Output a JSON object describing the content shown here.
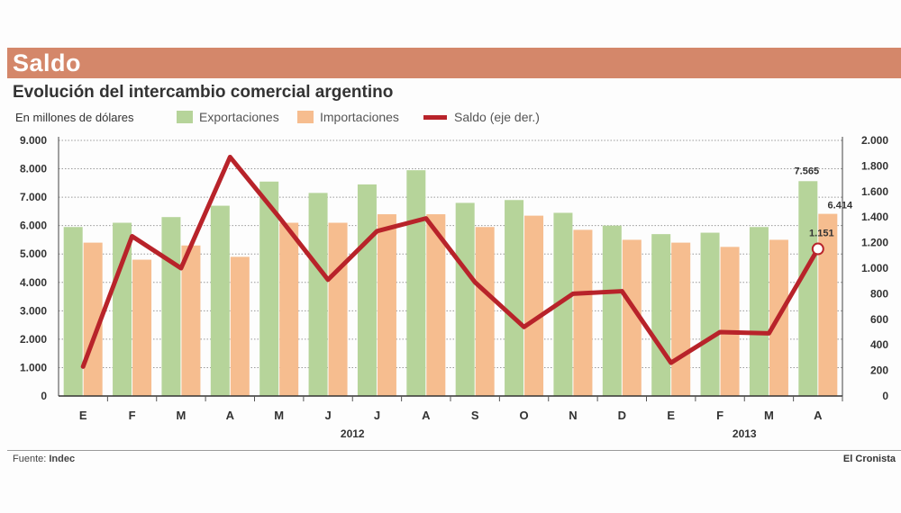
{
  "header": {
    "title": "Saldo"
  },
  "chart_title": "Evolución del intercambio comercial argentino",
  "unit_label": "En millones de dólares",
  "legend": [
    {
      "label": "Exportaciones",
      "color": "#b6d49a",
      "kind": "bar"
    },
    {
      "label": "Importaciones",
      "color": "#f6bd8f",
      "kind": "bar"
    },
    {
      "label": "Saldo (eje der.)",
      "color": "#b8232a",
      "kind": "line"
    }
  ],
  "footer": {
    "source_prefix": "Fuente:",
    "source_name": "Indec",
    "publisher": "El Cronista"
  },
  "chart_data": {
    "type": "bar",
    "categories": [
      "E",
      "F",
      "M",
      "A",
      "M",
      "J",
      "J",
      "A",
      "S",
      "O",
      "N",
      "D",
      "E",
      "F",
      "M",
      "A"
    ],
    "year_labels": [
      {
        "label": "2012",
        "from": 0,
        "to": 11
      },
      {
        "label": "2013",
        "from": 12,
        "to": 15
      }
    ],
    "series": [
      {
        "name": "Exportaciones",
        "color": "#b6d49a",
        "axis": "left",
        "values": [
          5950,
          6100,
          6300,
          6700,
          7550,
          7150,
          7450,
          7950,
          6800,
          6900,
          6450,
          6000,
          5700,
          5750,
          5950,
          7565
        ]
      },
      {
        "name": "Importaciones",
        "color": "#f6bd8f",
        "axis": "left",
        "values": [
          5400,
          4800,
          5300,
          4900,
          6100,
          6100,
          6400,
          6400,
          5950,
          6350,
          5850,
          5500,
          5400,
          5250,
          5500,
          6414
        ]
      },
      {
        "name": "Saldo (eje der.)",
        "color": "#b8232a",
        "axis": "right",
        "type": "line",
        "values": [
          230,
          1250,
          1000,
          1870,
          1400,
          910,
          1290,
          1390,
          890,
          540,
          800,
          820,
          260,
          500,
          490,
          1151
        ]
      }
    ],
    "data_labels": [
      {
        "series": 0,
        "index": 15,
        "text": "7.565"
      },
      {
        "series": 1,
        "index": 15,
        "text": "6.414"
      },
      {
        "series": 2,
        "index": 15,
        "text": "1.151"
      }
    ],
    "left_axis": {
      "ylim": [
        0,
        9000
      ],
      "ticks": [
        0,
        1000,
        2000,
        3000,
        4000,
        5000,
        6000,
        7000,
        8000,
        9000
      ],
      "tick_labels": [
        "0",
        "1.000",
        "2.000",
        "3.000",
        "4.000",
        "5.000",
        "6.000",
        "7.000",
        "8.000",
        "9.000"
      ]
    },
    "right_axis": {
      "ylim": [
        0,
        2000
      ],
      "ticks": [
        0,
        200,
        400,
        600,
        800,
        1000,
        1200,
        1400,
        1600,
        1800,
        2000
      ],
      "tick_labels": [
        "0",
        "200",
        "400",
        "600",
        "800",
        "1.000",
        "1.200",
        "1.400",
        "1.600",
        "1.800",
        "2.000"
      ]
    },
    "grid": true,
    "legend_position": "top"
  }
}
